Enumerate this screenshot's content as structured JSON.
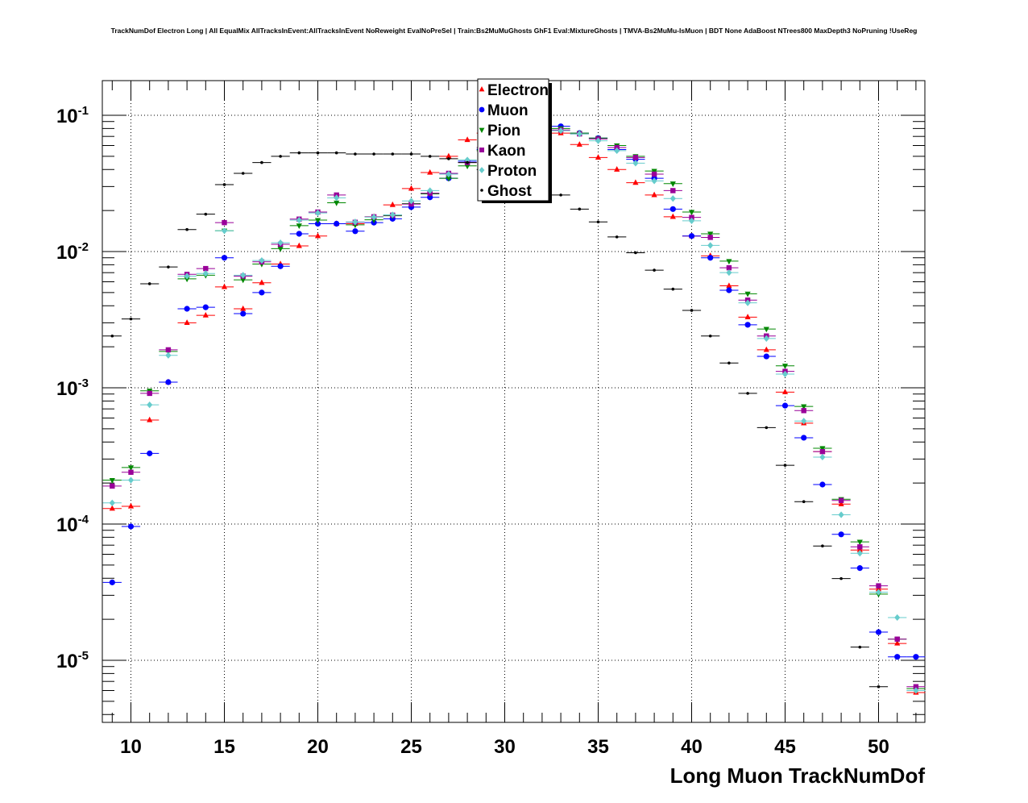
{
  "chart_data": {
    "type": "scatter",
    "title": "TrackNumDof Electron Long | All EqualMix AllTracksInEvent:AllTracksInEvent NoReweight EvalNoPreSel | Train:Bs2MuMuGhosts GhF1 Eval:MixtureGhosts | TMVA-Bs2MuMu-IsMuon | BDT None AdaBoost NTrees800 MaxDepth3 NoPruning !UseReg",
    "xlabel": "Long Muon TrackNumDof",
    "ylabel": "",
    "xlim": [
      8.5,
      52.5
    ],
    "ylim": [
      3.5e-06,
      0.18
    ],
    "log_y": true,
    "grid": true,
    "legend_position": "top-center",
    "x_ticks": [
      10,
      15,
      20,
      25,
      30,
      35,
      40,
      45,
      50
    ],
    "y_ticks": [
      {
        "base": "10",
        "exp": "-1",
        "value": 0.1
      },
      {
        "base": "10",
        "exp": "-2",
        "value": 0.01
      },
      {
        "base": "10",
        "exp": "-3",
        "value": 0.001
      },
      {
        "base": "10",
        "exp": "-4",
        "value": 0.0001
      },
      {
        "base": "10",
        "exp": "-5",
        "value": 1e-05
      }
    ],
    "x": [
      9,
      10,
      11,
      12,
      13,
      14,
      15,
      16,
      17,
      18,
      19,
      20,
      21,
      22,
      23,
      24,
      25,
      26,
      27,
      28,
      29,
      30,
      31,
      32,
      33,
      34,
      35,
      36,
      37,
      38,
      39,
      40,
      41,
      42,
      43,
      44,
      45,
      46,
      47,
      48,
      49,
      50,
      51,
      52
    ],
    "series": [
      {
        "name": "Electron",
        "color": "#ff0000",
        "marker": "triangle-up",
        "values": [
          0.00013,
          0.000135,
          0.00058,
          0.0011,
          0.003,
          0.0034,
          0.0055,
          0.0038,
          0.0059,
          0.0081,
          0.011,
          0.013,
          0.016,
          0.016,
          0.018,
          0.022,
          0.029,
          0.038,
          0.05,
          0.066,
          0.074,
          0.079,
          0.08,
          0.079,
          0.074,
          0.061,
          0.049,
          0.04,
          0.032,
          0.026,
          0.018,
          0.013,
          0.0093,
          0.0056,
          0.0033,
          0.0019,
          0.00093,
          0.00055,
          0.00034,
          0.00014,
          6.44e-05,
          3.33e-05,
          1.33e-05,
          5.8e-06
        ]
      },
      {
        "name": "Muon",
        "color": "#0000ff",
        "marker": "circle",
        "values": [
          3.73e-05,
          9.6e-05,
          0.00033,
          0.0011,
          0.0038,
          0.0039,
          0.009,
          0.0035,
          0.005,
          0.0078,
          0.0135,
          0.016,
          0.016,
          0.0141,
          0.0163,
          0.0174,
          0.0212,
          0.025,
          0.0345,
          0.046,
          0.056,
          0.067,
          0.075,
          0.08,
          0.083,
          0.074,
          0.068,
          0.056,
          0.0475,
          0.0345,
          0.0205,
          0.013,
          0.009,
          0.0052,
          0.0029,
          0.0017,
          0.00074,
          0.00043,
          0.000195,
          8.4e-05,
          4.75e-05,
          1.61e-05,
          1.06e-05,
          1.06e-05
        ]
      },
      {
        "name": "Pion",
        "color": "#008800",
        "marker": "triangle-down",
        "values": [
          0.00021,
          0.00026,
          0.00095,
          0.00185,
          0.0063,
          0.0067,
          0.0142,
          0.0062,
          0.0081,
          0.0105,
          0.0155,
          0.017,
          0.0228,
          0.0157,
          0.0171,
          0.0183,
          0.0225,
          0.0265,
          0.0345,
          0.0425,
          0.055,
          0.068,
          0.078,
          0.08,
          0.08,
          0.074,
          0.068,
          0.06,
          0.05,
          0.039,
          0.0315,
          0.0195,
          0.0135,
          0.0085,
          0.0049,
          0.0027,
          0.00145,
          0.00073,
          0.00036,
          0.000152,
          7.4e-05,
          3.06e-05,
          1.43e-05,
          6.2e-06
        ]
      },
      {
        "name": "Kaon",
        "color": "#990099",
        "marker": "square",
        "values": [
          0.00019,
          0.00024,
          0.00091,
          0.0019,
          0.0068,
          0.0075,
          0.0163,
          0.0066,
          0.0084,
          0.0113,
          0.0173,
          0.0195,
          0.026,
          0.0164,
          0.018,
          0.0185,
          0.0223,
          0.0268,
          0.0375,
          0.045,
          0.058,
          0.07,
          0.078,
          0.08,
          0.078,
          0.073,
          0.067,
          0.058,
          0.049,
          0.037,
          0.028,
          0.0178,
          0.0127,
          0.0076,
          0.0044,
          0.0024,
          0.00132,
          0.00068,
          0.00034,
          0.000149,
          6.8e-05,
          3.52e-05,
          1.43e-05,
          6.4e-06
        ]
      },
      {
        "name": "Proton",
        "color": "#66cccc",
        "marker": "diamond",
        "values": [
          0.000143,
          0.00021,
          0.00075,
          0.00173,
          0.0066,
          0.0069,
          0.0142,
          0.0067,
          0.0086,
          0.0116,
          0.017,
          0.0192,
          0.0248,
          0.0165,
          0.0179,
          0.0186,
          0.0235,
          0.028,
          0.037,
          0.047,
          0.057,
          0.069,
          0.076,
          0.078,
          0.077,
          0.073,
          0.065,
          0.055,
          0.0445,
          0.033,
          0.0245,
          0.0168,
          0.0111,
          0.007,
          0.0042,
          0.0023,
          0.00126,
          0.00057,
          0.00031,
          0.000117,
          6.1e-05,
          3.16e-05,
          2.06e-05,
          6e-06
        ]
      },
      {
        "name": "Ghost",
        "color": "#000000",
        "marker": "dot",
        "values": [
          0.0024,
          0.0032,
          0.0058,
          0.0077,
          0.0145,
          0.0188,
          0.031,
          0.0375,
          0.045,
          0.05,
          0.053,
          0.053,
          0.053,
          0.052,
          0.052,
          0.052,
          0.052,
          0.05,
          0.048,
          0.045,
          0.04,
          0.0335,
          0.03,
          0.028,
          0.026,
          0.0205,
          0.0165,
          0.0128,
          0.0098,
          0.0073,
          0.0053,
          0.0037,
          0.0024,
          0.00152,
          0.00091,
          0.00051,
          0.00027,
          0.000146,
          6.9e-05,
          3.98e-05,
          1.25e-05,
          6.4e-06,
          null,
          null
        ]
      }
    ]
  }
}
